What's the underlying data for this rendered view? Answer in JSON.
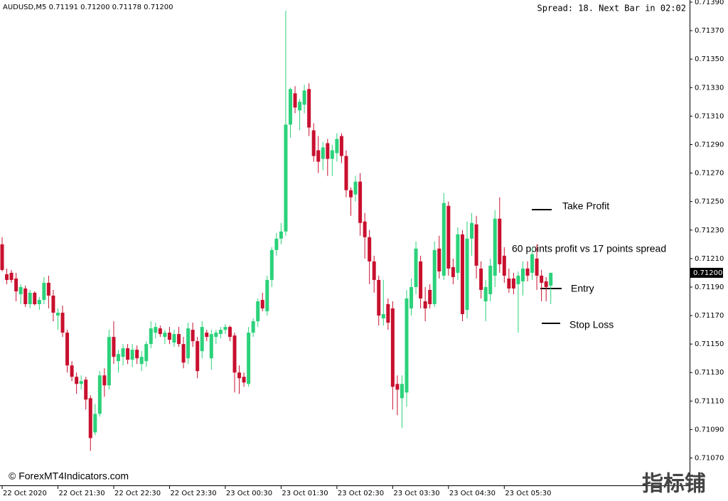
{
  "chart_data": {
    "type": "candlestick",
    "header": "AUDUSD,M5  0.71191 0.71200 0.71178 0.71200",
    "status": "Spread: 18. Next Bar in 02:02",
    "watermark": "© ForexMT4Indicators.com",
    "logo": "指标铺",
    "annotations": [
      "Take Profit",
      "60 points profit vs 17 points spread",
      "Entry",
      "Stop Loss"
    ],
    "up_color": "#2bd27a",
    "down_color": "#c8102e",
    "ylim": [
      0.710508,
      0.713915
    ],
    "yticks": [
      {
        "value": 0.7139,
        "label": "0.71390"
      },
      {
        "value": 0.7137,
        "label": "0.71370"
      },
      {
        "value": 0.7135,
        "label": "0.71350"
      },
      {
        "value": 0.7133,
        "label": "0.71330"
      },
      {
        "value": 0.7131,
        "label": "0.71310"
      },
      {
        "value": 0.7129,
        "label": "0.71290"
      },
      {
        "value": 0.7127,
        "label": "0.71270"
      },
      {
        "value": 0.7125,
        "label": "0.71250"
      },
      {
        "value": 0.7123,
        "label": "0.71230"
      },
      {
        "value": 0.7121,
        "label": "0.71210"
      },
      {
        "value": 0.7119,
        "label": "0.71190"
      },
      {
        "value": 0.7117,
        "label": "0.71170"
      },
      {
        "value": 0.7115,
        "label": "0.71150"
      },
      {
        "value": 0.7113,
        "label": "0.71130"
      },
      {
        "value": 0.7111,
        "label": "0.71110"
      },
      {
        "value": 0.7109,
        "label": "0.71090"
      },
      {
        "value": 0.7107,
        "label": "0.71070"
      }
    ],
    "current_price": {
      "value": 0.712,
      "label": "0.71200"
    },
    "categories": [
      "22 Oct 2020",
      null,
      null,
      null,
      null,
      null,
      null,
      null,
      null,
      null,
      null,
      null,
      "22 Oct 21:30",
      null,
      null,
      null,
      null,
      null,
      null,
      null,
      null,
      null,
      null,
      null,
      "22 Oct 22:30",
      null,
      null,
      null,
      null,
      null,
      null,
      null,
      null,
      null,
      null,
      null,
      "22 Oct 23:30",
      null,
      null,
      null,
      null,
      null,
      null,
      null,
      null,
      null,
      null,
      null,
      "23 Oct 00:30",
      null,
      null,
      null,
      null,
      null,
      null,
      null,
      null,
      null,
      null,
      null,
      "23 Oct 01:30",
      null,
      null,
      null,
      null,
      null,
      null,
      null,
      null,
      null,
      null,
      null,
      "23 Oct 02:30",
      null,
      null,
      null,
      null,
      null,
      null,
      null,
      null,
      null,
      null,
      null,
      "23 Oct 03:30",
      null,
      null,
      null,
      null,
      null,
      null,
      null,
      null,
      null,
      null,
      null,
      "23 Oct 04:30",
      null,
      null,
      null,
      null,
      null,
      null,
      null,
      null,
      null,
      null,
      null,
      "23 Oct 05:30",
      null,
      null,
      null,
      null,
      null,
      null,
      null,
      null,
      null,
      null
    ],
    "ohlc": [
      [
        0.7122,
        0.71225,
        0.71201,
        0.71202
      ],
      [
        0.71199,
        0.71203,
        0.71192,
        0.71195
      ],
      [
        0.712,
        0.71202,
        0.71193,
        0.71195
      ],
      [
        0.71196,
        0.712,
        0.7118,
        0.71187
      ],
      [
        0.71185,
        0.71192,
        0.71178,
        0.7119
      ],
      [
        0.71189,
        0.71191,
        0.71176,
        0.71178
      ],
      [
        0.71178,
        0.71188,
        0.71175,
        0.71186
      ],
      [
        0.71186,
        0.71187,
        0.71177,
        0.71178
      ],
      [
        0.71178,
        0.71183,
        0.71174,
        0.71181
      ],
      [
        0.71181,
        0.71197,
        0.71178,
        0.71193
      ],
      [
        0.71193,
        0.71198,
        0.71175,
        0.71184
      ],
      [
        0.71184,
        0.71188,
        0.71166,
        0.71172
      ],
      [
        0.7117,
        0.71175,
        0.7116,
        0.71172
      ],
      [
        0.71172,
        0.71177,
        0.71155,
        0.71158
      ],
      [
        0.71158,
        0.7116,
        0.7113,
        0.71135
      ],
      [
        0.71135,
        0.71138,
        0.71124,
        0.71127
      ],
      [
        0.71127,
        0.7113,
        0.71115,
        0.71122
      ],
      [
        0.71122,
        0.71128,
        0.71118,
        0.71124
      ],
      [
        0.71125,
        0.71127,
        0.71104,
        0.71111
      ],
      [
        0.71112,
        0.71114,
        0.71075,
        0.71084
      ],
      [
        0.71088,
        0.71108,
        0.71086,
        0.71101
      ],
      [
        0.71101,
        0.71131,
        0.71099,
        0.71128
      ],
      [
        0.71128,
        0.71133,
        0.71113,
        0.71121
      ],
      [
        0.71121,
        0.7116,
        0.71118,
        0.71155
      ],
      [
        0.71155,
        0.71166,
        0.71136,
        0.71141
      ],
      [
        0.71138,
        0.71146,
        0.7113,
        0.71143
      ],
      [
        0.71141,
        0.7115,
        0.71135,
        0.71147
      ],
      [
        0.71147,
        0.7115,
        0.71136,
        0.71139
      ],
      [
        0.71139,
        0.7115,
        0.71134,
        0.71146
      ],
      [
        0.71146,
        0.71149,
        0.71136,
        0.7114
      ],
      [
        0.71136,
        0.71145,
        0.71131,
        0.71141
      ],
      [
        0.71138,
        0.71152,
        0.71134,
        0.7115
      ],
      [
        0.7115,
        0.71166,
        0.71147,
        0.71161
      ],
      [
        0.71158,
        0.71165,
        0.71154,
        0.71162
      ],
      [
        0.71161,
        0.71163,
        0.71155,
        0.71157
      ],
      [
        0.71155,
        0.7116,
        0.7115,
        0.71158
      ],
      [
        0.71158,
        0.71162,
        0.7115,
        0.71153
      ],
      [
        0.71151,
        0.7116,
        0.71148,
        0.71157
      ],
      [
        0.71157,
        0.71162,
        0.71148,
        0.7115
      ],
      [
        0.7115,
        0.71155,
        0.71133,
        0.71137
      ],
      [
        0.7114,
        0.71165,
        0.71136,
        0.71161
      ],
      [
        0.7116,
        0.71165,
        0.71148,
        0.71152
      ],
      [
        0.71152,
        0.71155,
        0.71126,
        0.71131
      ],
      [
        0.71145,
        0.71166,
        0.7114,
        0.71162
      ],
      [
        0.71158,
        0.7116,
        0.71152,
        0.71155
      ],
      [
        0.7114,
        0.7116,
        0.71132,
        0.71157
      ],
      [
        0.71155,
        0.7116,
        0.7115,
        0.71158
      ],
      [
        0.71157,
        0.71162,
        0.71154,
        0.7116
      ],
      [
        0.7116,
        0.71164,
        0.71157,
        0.71162
      ],
      [
        0.71162,
        0.71163,
        0.71152,
        0.71155
      ],
      [
        0.71156,
        0.71158,
        0.71116,
        0.7113
      ],
      [
        0.7113,
        0.71135,
        0.71115,
        0.71126
      ],
      [
        0.71127,
        0.7113,
        0.7112,
        0.71123
      ],
      [
        0.71122,
        0.71162,
        0.7112,
        0.71158
      ],
      [
        0.71158,
        0.71168,
        0.71155,
        0.71166
      ],
      [
        0.71166,
        0.71182,
        0.71162,
        0.7118
      ],
      [
        0.71181,
        0.71186,
        0.71173,
        0.71175
      ],
      [
        0.71173,
        0.71198,
        0.7117,
        0.71195
      ],
      [
        0.71195,
        0.71218,
        0.7119,
        0.71216
      ],
      [
        0.71216,
        0.71228,
        0.71212,
        0.71224
      ],
      [
        0.71224,
        0.71235,
        0.7122,
        0.71229
      ],
      [
        0.71229,
        0.71384,
        0.71226,
        0.71304
      ],
      [
        0.71304,
        0.7133,
        0.71295,
        0.71329
      ],
      [
        0.71326,
        0.71331,
        0.71312,
        0.71316
      ],
      [
        0.71314,
        0.71322,
        0.713,
        0.7132
      ],
      [
        0.71318,
        0.71332,
        0.71312,
        0.71328
      ],
      [
        0.71329,
        0.71333,
        0.71296,
        0.71302
      ],
      [
        0.713,
        0.71305,
        0.71278,
        0.71282
      ],
      [
        0.71286,
        0.71296,
        0.7127,
        0.71278
      ],
      [
        0.7128,
        0.71292,
        0.71272,
        0.71288
      ],
      [
        0.71291,
        0.71294,
        0.71268,
        0.7128
      ],
      [
        0.7128,
        0.7129,
        0.71268,
        0.71286
      ],
      [
        0.71284,
        0.71298,
        0.71278,
        0.71294
      ],
      [
        0.71296,
        0.71298,
        0.71277,
        0.71282
      ],
      [
        0.71282,
        0.71286,
        0.71253,
        0.71258
      ],
      [
        0.71258,
        0.7126,
        0.7124,
        0.71253
      ],
      [
        0.71255,
        0.71268,
        0.7125,
        0.71264
      ],
      [
        0.71264,
        0.7127,
        0.71226,
        0.71235
      ],
      [
        0.71236,
        0.71242,
        0.7121,
        0.71225
      ],
      [
        0.71225,
        0.7123,
        0.71192,
        0.71208
      ],
      [
        0.71208,
        0.71212,
        0.71186,
        0.71195
      ],
      [
        0.71195,
        0.71198,
        0.71163,
        0.7117
      ],
      [
        0.71168,
        0.71195,
        0.71163,
        0.71171
      ],
      [
        0.71178,
        0.71182,
        0.7116,
        0.71165
      ],
      [
        0.71175,
        0.7118,
        0.71104,
        0.7112
      ],
      [
        0.71122,
        0.71128,
        0.711,
        0.71118
      ],
      [
        0.71112,
        0.71128,
        0.71091,
        0.71122
      ],
      [
        0.71116,
        0.71188,
        0.71106,
        0.71182
      ],
      [
        0.71175,
        0.71196,
        0.7117,
        0.7119
      ],
      [
        0.7119,
        0.71222,
        0.71185,
        0.71217
      ],
      [
        0.71208,
        0.71212,
        0.71175,
        0.71182
      ],
      [
        0.7118,
        0.7119,
        0.71166,
        0.71175
      ],
      [
        0.71188,
        0.71192,
        0.71175,
        0.71178
      ],
      [
        0.71178,
        0.71222,
        0.71176,
        0.71216
      ],
      [
        0.71217,
        0.71226,
        0.71196,
        0.71201
      ],
      [
        0.71198,
        0.71256,
        0.71195,
        0.71249
      ],
      [
        0.71247,
        0.7125,
        0.71198,
        0.71203
      ],
      [
        0.71204,
        0.7121,
        0.71192,
        0.71197
      ],
      [
        0.712,
        0.71232,
        0.71195,
        0.71227
      ],
      [
        0.71227,
        0.7123,
        0.71166,
        0.71171
      ],
      [
        0.71174,
        0.71236,
        0.71168,
        0.71224
      ],
      [
        0.71224,
        0.71242,
        0.71212,
        0.71235
      ],
      [
        0.71234,
        0.7124,
        0.71196,
        0.71205
      ],
      [
        0.71203,
        0.71208,
        0.71182,
        0.71188
      ],
      [
        0.7118,
        0.71195,
        0.71166,
        0.7119
      ],
      [
        0.71185,
        0.7121,
        0.7118,
        0.71205
      ],
      [
        0.71198,
        0.71244,
        0.7119,
        0.71238
      ],
      [
        0.71238,
        0.71253,
        0.712,
        0.71206
      ],
      [
        0.71212,
        0.71218,
        0.71193,
        0.71198
      ],
      [
        0.71196,
        0.71203,
        0.71186,
        0.71189
      ],
      [
        0.71196,
        0.712,
        0.71185,
        0.71189
      ],
      [
        0.71192,
        0.71201,
        0.71158,
        0.71198
      ],
      [
        0.71194,
        0.71208,
        0.71184,
        0.71203
      ],
      [
        0.71203,
        0.71208,
        0.71194,
        0.71198
      ],
      [
        0.712,
        0.71218,
        0.71195,
        0.71213
      ],
      [
        0.7121,
        0.7122,
        0.71188,
        0.71198
      ],
      [
        0.71198,
        0.71202,
        0.7118,
        0.71193
      ],
      [
        0.71194,
        0.71197,
        0.7118,
        0.7119
      ],
      [
        0.71191,
        0.712,
        0.71178,
        0.712
      ]
    ]
  }
}
